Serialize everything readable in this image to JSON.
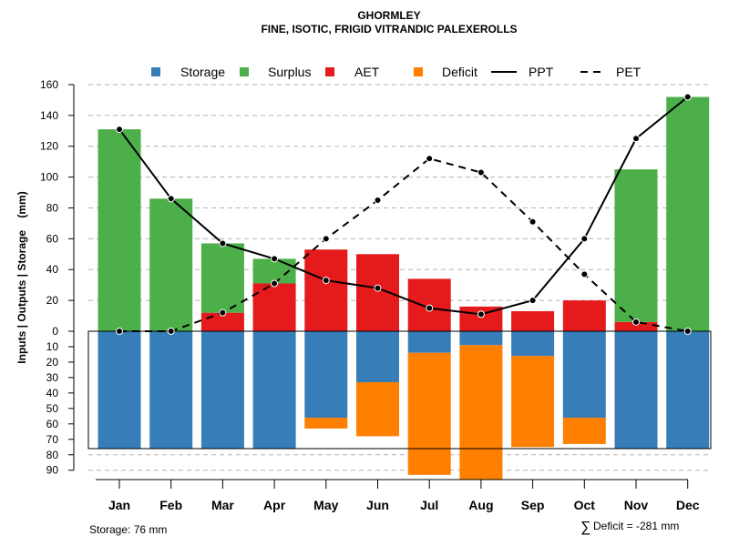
{
  "chart_data": {
    "type": "bar",
    "title": "GHORMLEY",
    "subtitle": "FINE, ISOTIC, FRIGID VITRANDIC PALEXEROLLS",
    "ylabel": "Inputs | Outputs | Storage    (mm)",
    "categories": [
      "Jan",
      "Feb",
      "Mar",
      "Apr",
      "May",
      "Jun",
      "Jul",
      "Aug",
      "Sep",
      "Oct",
      "Nov",
      "Dec"
    ],
    "ylim_top": [
      0,
      160
    ],
    "ylim_bottom": [
      0,
      90
    ],
    "yticks_top": [
      0,
      20,
      40,
      60,
      80,
      100,
      120,
      140,
      160
    ],
    "yticks_bottom": [
      10,
      20,
      30,
      40,
      50,
      60,
      70,
      80,
      90
    ],
    "series": [
      {
        "name": "Storage",
        "color": "#377EB8",
        "panel": "bottom",
        "values": [
          76,
          76,
          76,
          76,
          56,
          33,
          14,
          9,
          16,
          56,
          76,
          76
        ]
      },
      {
        "name": "Surplus",
        "color": "#4DAF4A",
        "panel": "top",
        "values": [
          131,
          86,
          45,
          16,
          0,
          0,
          0,
          0,
          0,
          0,
          99,
          152
        ]
      },
      {
        "name": "AET",
        "color": "#E41A1C",
        "panel": "top",
        "values": [
          0,
          0,
          12,
          31,
          53,
          50,
          34,
          16,
          13,
          20,
          6,
          0
        ]
      },
      {
        "name": "Deficit",
        "color": "#FF7F00",
        "panel": "bottom",
        "values": [
          0,
          0,
          0,
          0,
          7,
          35,
          79,
          87,
          59,
          17,
          0,
          0
        ]
      },
      {
        "name": "PPT",
        "color": "#000000",
        "style": "solid",
        "values": [
          131,
          86,
          57,
          47,
          33,
          28,
          15,
          11,
          20,
          60,
          125,
          152
        ]
      },
      {
        "name": "PET",
        "color": "#000000",
        "style": "dashed",
        "values": [
          0,
          0,
          12,
          31,
          60,
          85,
          112,
          103,
          71,
          37,
          6,
          0
        ]
      }
    ],
    "annotations": {
      "storage": "Storage: 76 mm",
      "deficit_symbol": "∑",
      "deficit": "Deficit = -281 mm"
    }
  }
}
